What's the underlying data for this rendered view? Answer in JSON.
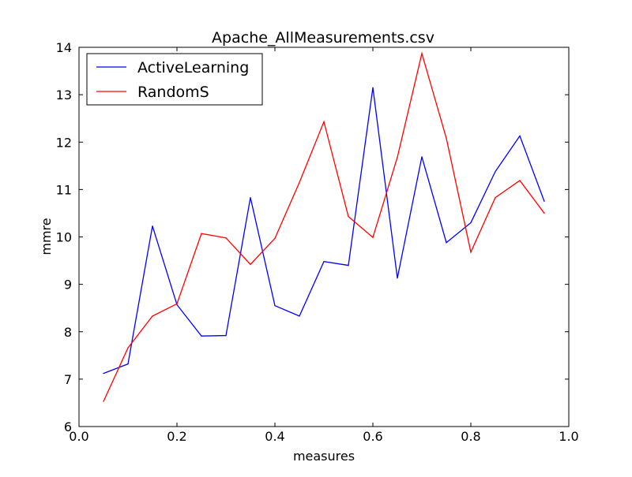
{
  "chart_data": {
    "type": "line",
    "title": "Apache_AllMeasurements.csv",
    "xlabel": "measures",
    "ylabel": "mmre",
    "xlim": [
      0.0,
      1.0
    ],
    "ylim": [
      6,
      14
    ],
    "xticks": [
      "0.0",
      "0.2",
      "0.4",
      "0.6",
      "0.8",
      "1.0"
    ],
    "xtick_values": [
      0.0,
      0.2,
      0.4,
      0.6,
      0.8,
      1.0
    ],
    "yticks": [
      "6",
      "7",
      "8",
      "9",
      "10",
      "11",
      "12",
      "13",
      "14"
    ],
    "ytick_values": [
      6,
      7,
      8,
      9,
      10,
      11,
      12,
      13,
      14
    ],
    "grid": false,
    "legend_position": "top-left",
    "x": [
      0.05,
      0.1,
      0.15,
      0.2,
      0.25,
      0.3,
      0.35,
      0.4,
      0.45,
      0.5,
      0.55,
      0.6,
      0.65,
      0.7,
      0.75,
      0.8,
      0.85,
      0.9,
      0.95
    ],
    "series": [
      {
        "name": "ActiveLearning",
        "color": "#0000ff",
        "values": [
          7.12,
          7.32,
          10.23,
          8.57,
          7.91,
          7.92,
          10.83,
          8.55,
          8.33,
          9.48,
          9.4,
          13.15,
          9.13,
          11.69,
          9.88,
          10.3,
          11.38,
          12.13,
          10.75
        ]
      },
      {
        "name": "RandomS",
        "color": "#ff0000",
        "values": [
          6.53,
          7.66,
          8.33,
          8.59,
          10.07,
          9.98,
          9.42,
          9.97,
          11.15,
          12.43,
          10.43,
          9.99,
          11.68,
          13.87,
          12.08,
          9.68,
          10.83,
          11.19,
          10.5
        ]
      }
    ]
  }
}
